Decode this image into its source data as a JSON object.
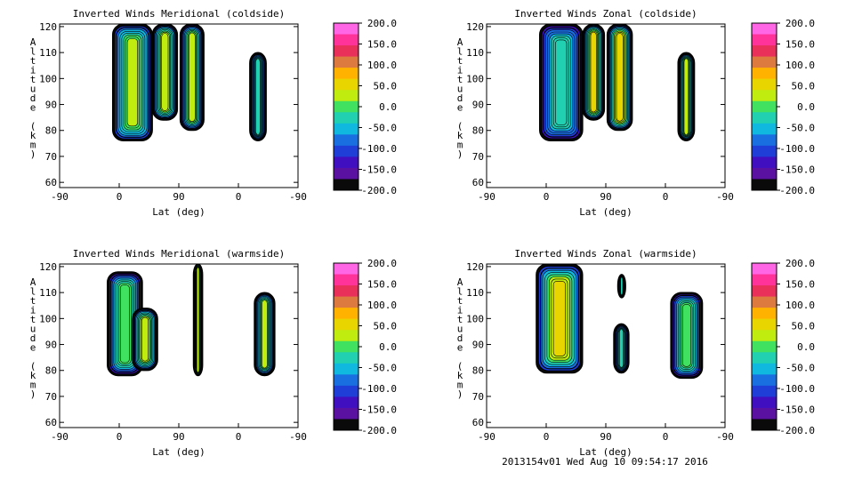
{
  "figure": {
    "footer": "2013154v01 Wed Aug 10 09:54:17 2016"
  },
  "colorbar": {
    "ticks": [
      "200.0",
      "150.0",
      "100.0",
      "50.0",
      "0.0",
      "-50.0",
      "-100.0",
      "-150.0",
      "-200.0"
    ],
    "colors": [
      "#ff66e6",
      "#ff3399",
      "#e8305a",
      "#dd7a40",
      "#ffb300",
      "#e8d500",
      "#c0ec10",
      "#40e060",
      "#20d0b0",
      "#10b8e0",
      "#1a6fe0",
      "#1f3ed8",
      "#4010c0",
      "#5a10a0",
      "#0a0a0a"
    ]
  },
  "chart_data": [
    {
      "type": "contour",
      "title": "Inverted Winds Meridional (coldside)",
      "xlabel": "Lat (deg)",
      "ylabel": "Altitude (km)",
      "xticks": [
        "-90",
        "0",
        "90",
        "0",
        "-90"
      ],
      "yticks": [
        "60",
        "70",
        "80",
        "90",
        "100",
        "110",
        "120"
      ],
      "ylim": [
        58,
        121
      ],
      "clim": [
        -200,
        200
      ],
      "regions": [
        {
          "x0": -10,
          "x1": 50,
          "ytop": 121,
          "ybot": 76,
          "core": 25
        },
        {
          "x0": 50,
          "x1": 88,
          "ytop": 121,
          "ybot": 84,
          "core": 35
        },
        {
          "x0": 92,
          "x1": 128,
          "ytop": 121,
          "ybot": 80,
          "core": 20
        },
        {
          "x0": 197,
          "x1": 222,
          "ytop": 110,
          "ybot": 76,
          "core": -25
        }
      ]
    },
    {
      "type": "contour",
      "title": "Inverted Winds Zonal (coldside)",
      "xlabel": "Lat (deg)",
      "ylabel": "Altitude (km)",
      "xticks": [
        "-90",
        "0",
        "90",
        "0",
        "-90"
      ],
      "yticks": [
        "60",
        "70",
        "80",
        "90",
        "100",
        "110",
        "120"
      ],
      "ylim": [
        58,
        121
      ],
      "clim": [
        -200,
        200
      ],
      "regions": [
        {
          "x0": -10,
          "x1": 55,
          "ytop": 121,
          "ybot": 76,
          "core": -15
        },
        {
          "x0": 55,
          "x1": 88,
          "ytop": 121,
          "ybot": 84,
          "core": 45
        },
        {
          "x0": 92,
          "x1": 130,
          "ytop": 121,
          "ybot": 80,
          "core": 55
        },
        {
          "x0": 199,
          "x1": 224,
          "ytop": 110,
          "ybot": 76,
          "core": 20
        }
      ]
    },
    {
      "type": "contour",
      "title": "Inverted Winds Meridional (warmside)",
      "xlabel": "Lat (deg)",
      "ylabel": "Altitude (km)",
      "xticks": [
        "-90",
        "0",
        "90",
        "0",
        "-90"
      ],
      "yticks": [
        "60",
        "70",
        "80",
        "90",
        "100",
        "110",
        "120"
      ],
      "ylim": [
        58,
        121
      ],
      "clim": [
        -200,
        200
      ],
      "regions": [
        {
          "x0": -18,
          "x1": 35,
          "ytop": 118,
          "ybot": 78,
          "core": 10
        },
        {
          "x0": 20,
          "x1": 58,
          "ytop": 104,
          "ybot": 80,
          "core": 35
        },
        {
          "x0": 112,
          "x1": 126,
          "ytop": 121,
          "ybot": 78,
          "core": 30
        },
        {
          "x0": 204,
          "x1": 235,
          "ytop": 110,
          "ybot": 78,
          "core": 15
        }
      ]
    },
    {
      "type": "contour",
      "title": "Inverted Winds Zonal (warmside)",
      "xlabel": "Lat (deg)",
      "ylabel": "Altitude (km)",
      "xticks": [
        "-90",
        "0",
        "90",
        "0",
        "-90"
      ],
      "yticks": [
        "60",
        "70",
        "80",
        "90",
        "100",
        "110",
        "120"
      ],
      "ylim": [
        58,
        121
      ],
      "clim": [
        -200,
        200
      ],
      "regions": [
        {
          "x0": -15,
          "x1": 55,
          "ytop": 121,
          "ybot": 79,
          "core": 60
        },
        {
          "x0": 108,
          "x1": 120,
          "ytop": 117,
          "ybot": 108,
          "core": -40
        },
        {
          "x0": 102,
          "x1": 125,
          "ytop": 98,
          "ybot": 79,
          "core": -30
        },
        {
          "x0": 188,
          "x1": 236,
          "ytop": 110,
          "ybot": 77,
          "core": 10
        }
      ]
    }
  ]
}
